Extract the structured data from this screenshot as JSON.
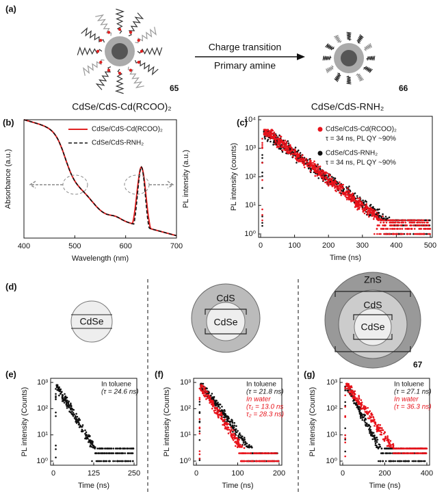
{
  "panel_a": {
    "label": "(a)",
    "left": {
      "number": "65",
      "caption": "CdSe/CdS-Cd(RCOO)₂"
    },
    "arrow": {
      "top": "Charge transition",
      "bottom": "Primary amine"
    },
    "right": {
      "number": "66",
      "caption": "CdSe/CdS-RNH₂"
    }
  },
  "panel_b": {
    "label": "(b)",
    "y_label_left": "Absorbance (a.u.)",
    "y_label_right": "PL intensity (a.u.)",
    "x_label": "Wavelength (nm)",
    "x_ticks": [
      "400",
      "500",
      "600",
      "700"
    ],
    "legend": [
      "CdSe/CdS-Cd(RCOO)₂",
      "CdSe/CdS-RNH₂"
    ]
  },
  "panel_c": {
    "label": "(c)",
    "y_label": "PL intensity (counts)",
    "x_label": "Time (ns)",
    "x_ticks": [
      "0",
      "100",
      "200",
      "300",
      "400",
      "500"
    ],
    "y_ticks": [
      "10⁰",
      "10¹",
      "10²",
      "10³",
      "10⁴"
    ],
    "legend": [
      {
        "name": "CdSe/CdS-Cd(RCOO)₂",
        "note": "τ = 34 ns, PL QY ~90%"
      },
      {
        "name": "CdSe/CdS-RNH₂",
        "note": "τ = 34 ns, PL QY ~90%"
      }
    ]
  },
  "panel_d": {
    "label": "(d)",
    "core": "CdSe",
    "shell": "CdS",
    "outer": "ZnS",
    "number": "67"
  },
  "panels_efg": [
    {
      "label": "(e)",
      "y_label": "PL intensity (Counts)",
      "x_label": "Time (ns)",
      "x_ticks": [
        "0",
        "125",
        "250"
      ],
      "y_ticks": [
        "10⁰",
        "10¹",
        "10²",
        "10³"
      ],
      "notes": [
        "In toluene",
        "(τ = 24.6 ns)"
      ]
    },
    {
      "label": "(f)",
      "y_label": "PL intensity (Counts)",
      "x_label": "Time (ns)",
      "x_ticks": [
        "0",
        "100",
        "200"
      ],
      "y_ticks": [
        "10⁰",
        "10¹",
        "10²",
        "10³"
      ],
      "notes": [
        "In toluene",
        "(τ = 21.8 ns)",
        "In water",
        "(τ₁ = 13.0 ns",
        "τ₂ = 28.3 ns)"
      ]
    },
    {
      "label": "(g)",
      "y_label": "PL intensity (Counts)",
      "x_label": "Time (ns)",
      "x_ticks": [
        "0",
        "200",
        "400"
      ],
      "y_ticks": [
        "10⁰",
        "10¹",
        "10²",
        "10³"
      ],
      "notes": [
        "In toluene",
        "(τ = 27.1 ns)",
        "In water",
        "(τ = 36.3 ns)"
      ]
    }
  ]
}
